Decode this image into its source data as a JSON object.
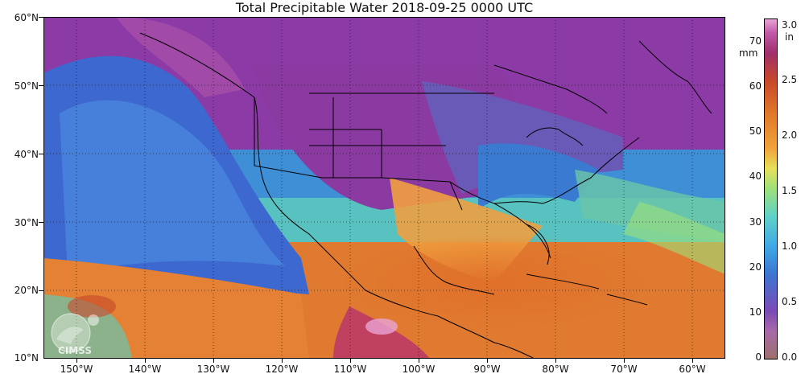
{
  "title": "Total Precipitable Water  2018-09-25 0000 UTC",
  "lat_labels": [
    "60°N",
    "50°N",
    "40°N",
    "30°N",
    "20°N",
    "10°N"
  ],
  "lon_labels": [
    "150°W",
    "140°W",
    "130°W",
    "120°W",
    "110°W",
    "100°W",
    "90°W",
    "80°W",
    "70°W",
    "60°W"
  ],
  "colorbar": {
    "mm_unit": "mm",
    "in_unit": "in",
    "mm_ticks": [
      "70",
      "60",
      "50",
      "40",
      "30",
      "20",
      "10",
      "0"
    ],
    "in_ticks": [
      "3.0",
      "2.5",
      "2.0",
      "1.5",
      "1.0",
      "0.5",
      "0.0"
    ]
  },
  "logo_text": "CIMSS",
  "colors": {
    "dry": "#8a3aa0",
    "moist": "#3d76c9",
    "wet": "#e07830",
    "very_wet": "#e9a4d6"
  }
}
